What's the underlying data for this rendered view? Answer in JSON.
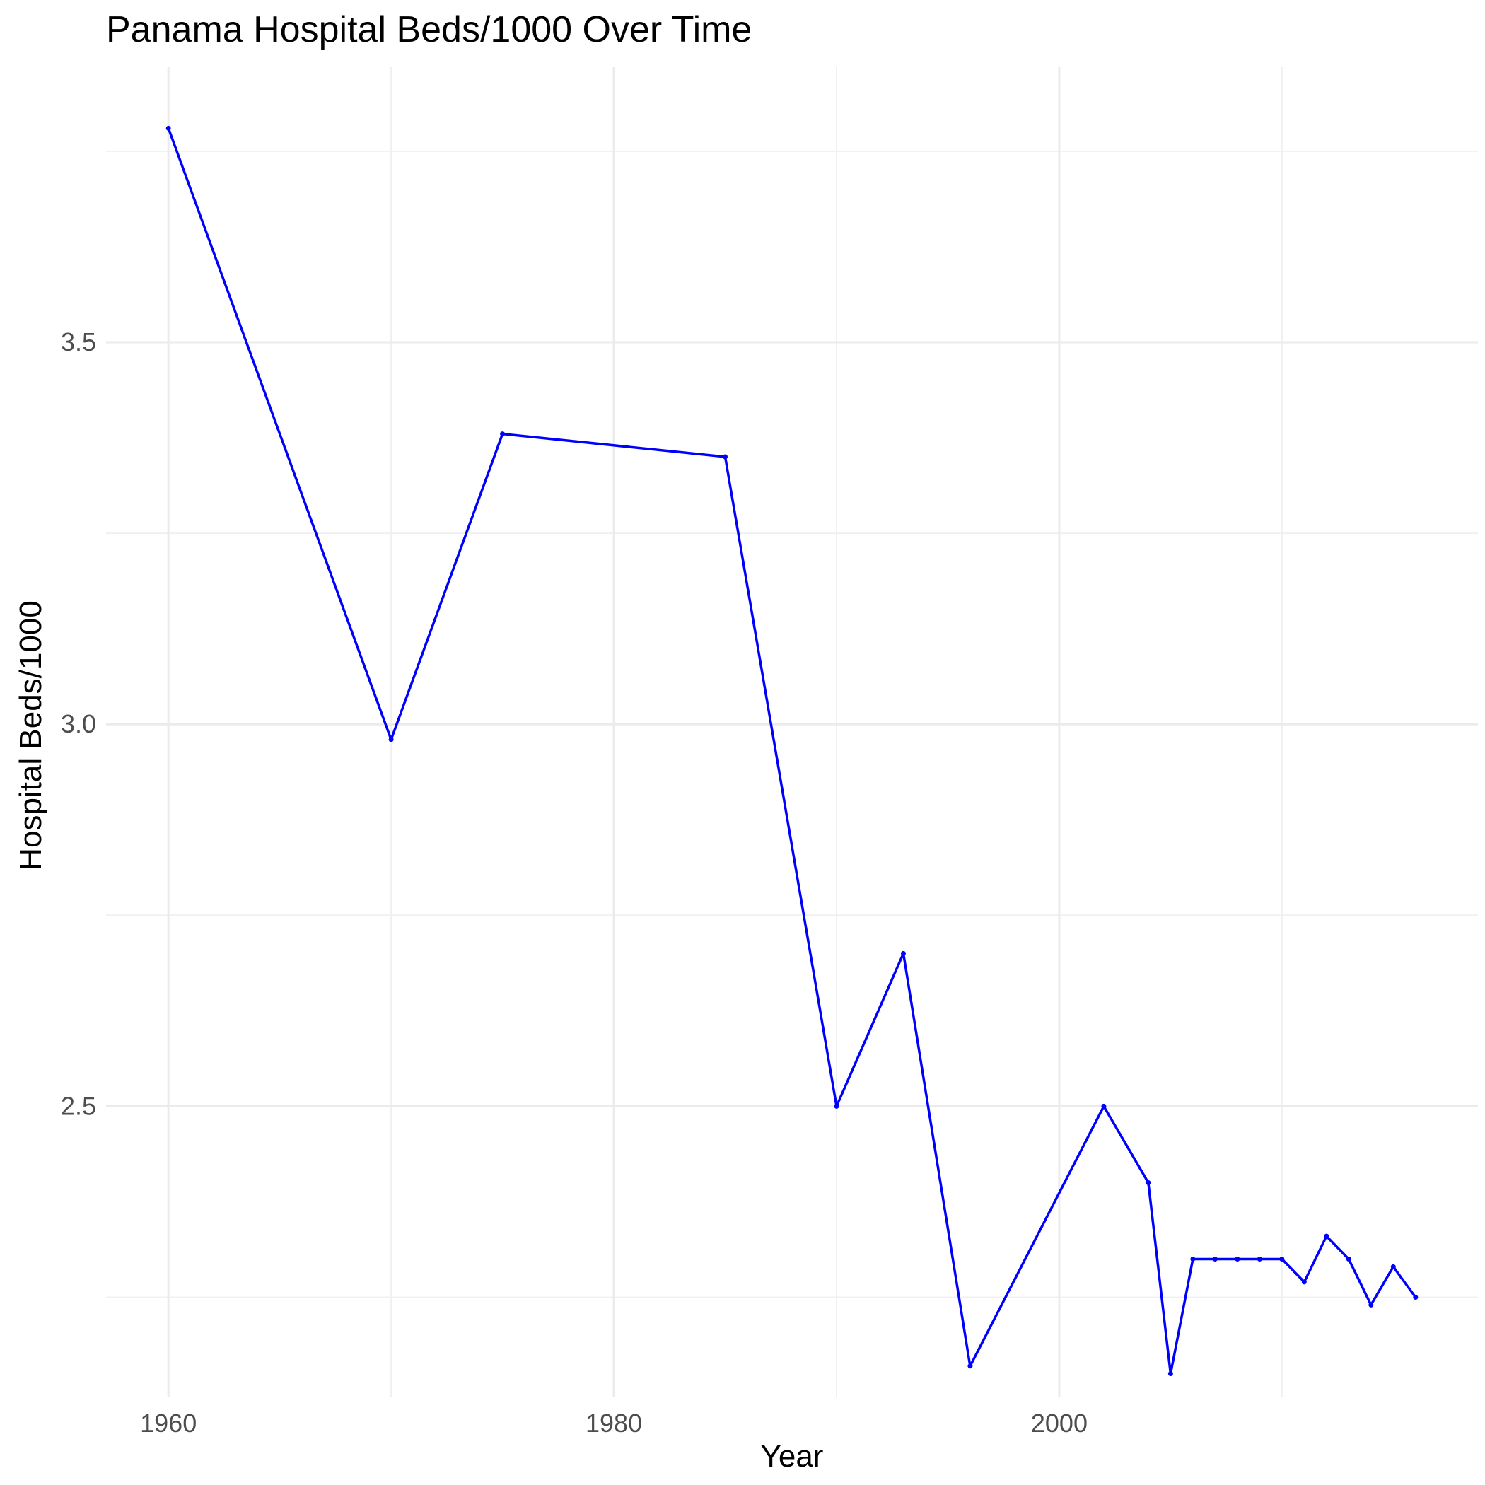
{
  "chart_data": {
    "type": "line",
    "title": "Panama Hospital Beds/1000 Over Time",
    "xlabel": "Year",
    "ylabel": "Hospital Beds/1000",
    "xlim": [
      1957.2,
      2018.8
    ],
    "ylim": [
      2.12,
      3.86
    ],
    "x_ticks": [
      1960,
      1980,
      2000
    ],
    "y_ticks": [
      2.5,
      3.0,
      3.5
    ],
    "grid": true,
    "legend": "none",
    "line_color": "#0000FF",
    "series": [
      {
        "x": [
          1960,
          1970,
          1975,
          1985,
          1990,
          1993,
          1996,
          2002,
          2004,
          2005,
          2006,
          2007,
          2008,
          2009,
          2010,
          2011,
          2012,
          2013,
          2014,
          2015,
          2016
        ],
        "y": [
          3.78,
          2.98,
          3.38,
          3.35,
          2.5,
          2.7,
          2.16,
          2.5,
          2.4,
          2.15,
          2.3,
          2.3,
          2.3,
          2.3,
          2.3,
          2.27,
          2.33,
          2.3,
          2.24,
          2.29,
          2.25
        ]
      }
    ]
  }
}
